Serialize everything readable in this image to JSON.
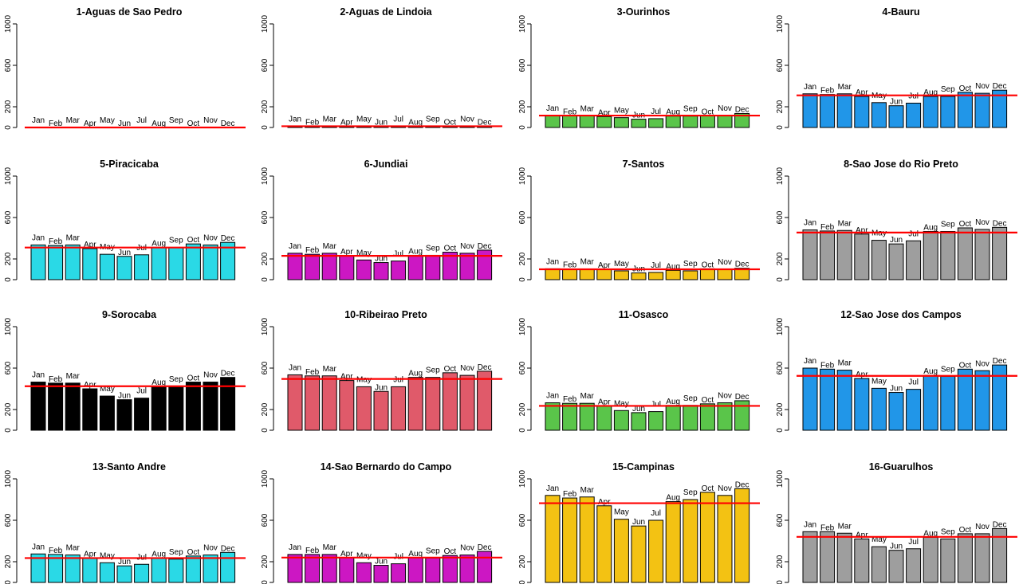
{
  "chart_data": [
    {
      "type": "bar",
      "title": "1-Aguas de Sao Pedro",
      "color": "#2196f3",
      "categories": [
        "Jan",
        "Feb",
        "Mar",
        "Apr",
        "May",
        "Jun",
        "Jul",
        "Aug",
        "Sep",
        "Oct",
        "Nov",
        "Dec"
      ],
      "values": [
        0,
        0,
        0,
        0,
        0,
        0,
        0,
        0,
        0,
        0,
        0,
        0
      ],
      "mean_line": 0,
      "yticks": [
        0,
        200,
        600,
        1000
      ],
      "ylim": [
        0,
        1000
      ]
    },
    {
      "type": "bar",
      "title": "2-Aguas de Lindoia",
      "color": "#2196f3",
      "categories": [
        "Jan",
        "Feb",
        "Mar",
        "Apr",
        "May",
        "Jun",
        "Jul",
        "Aug",
        "Sep",
        "Oct",
        "Nov",
        "Dec"
      ],
      "values": [
        12,
        12,
        12,
        12,
        12,
        12,
        12,
        12,
        12,
        12,
        12,
        12
      ],
      "mean_line": 12,
      "yticks": [
        0,
        200,
        600,
        1000
      ],
      "ylim": [
        0,
        1000
      ]
    },
    {
      "type": "bar",
      "title": "3-Ourinhos",
      "color": "#5ac54a",
      "categories": [
        "Jan",
        "Feb",
        "Mar",
        "Apr",
        "May",
        "Jun",
        "Jul",
        "Aug",
        "Sep",
        "Oct",
        "Nov",
        "Dec"
      ],
      "values": [
        115,
        113,
        113,
        105,
        95,
        80,
        85,
        110,
        110,
        112,
        115,
        135
      ],
      "mean_line": 115,
      "yticks": [
        0,
        200,
        600,
        1000
      ],
      "ylim": [
        0,
        1000
      ]
    },
    {
      "type": "bar",
      "title": "4-Bauru",
      "color": "#2196e8",
      "categories": [
        "Jan",
        "Feb",
        "Mar",
        "Apr",
        "May",
        "Jun",
        "Jul",
        "Aug",
        "Sep",
        "Oct",
        "Nov",
        "Dec"
      ],
      "values": [
        325,
        318,
        325,
        300,
        240,
        210,
        235,
        300,
        300,
        340,
        330,
        360
      ],
      "mean_line": 310,
      "yticks": [
        0,
        200,
        600,
        1000
      ],
      "ylim": [
        0,
        1000
      ]
    },
    {
      "type": "bar",
      "title": "5-Piracicaba",
      "color": "#2ad9e6",
      "categories": [
        "Jan",
        "Feb",
        "Mar",
        "Apr",
        "May",
        "Jun",
        "Jul",
        "Aug",
        "Sep",
        "Oct",
        "Nov",
        "Dec"
      ],
      "values": [
        335,
        330,
        335,
        300,
        245,
        225,
        240,
        310,
        310,
        345,
        335,
        360
      ],
      "mean_line": 310,
      "yticks": [
        0,
        200,
        600,
        1000
      ],
      "ylim": [
        0,
        1000
      ]
    },
    {
      "type": "bar",
      "title": "6-Jundiai",
      "color": "#cc17c3",
      "categories": [
        "Jan",
        "Feb",
        "Mar",
        "Apr",
        "May",
        "Jun",
        "Jul",
        "Aug",
        "Sep",
        "Oct",
        "Nov",
        "Dec"
      ],
      "values": [
        255,
        245,
        255,
        230,
        190,
        165,
        180,
        235,
        235,
        265,
        255,
        285
      ],
      "mean_line": 230,
      "yticks": [
        0,
        200,
        600,
        1000
      ],
      "ylim": [
        0,
        1000
      ]
    },
    {
      "type": "bar",
      "title": "7-Santos",
      "color": "#f3c213",
      "categories": [
        "Jan",
        "Feb",
        "Mar",
        "Apr",
        "May",
        "Jun",
        "Jul",
        "Aug",
        "Sep",
        "Oct",
        "Nov",
        "Dec"
      ],
      "values": [
        105,
        103,
        103,
        100,
        85,
        65,
        70,
        90,
        85,
        105,
        100,
        110
      ],
      "mean_line": 100,
      "yticks": [
        0,
        200,
        600,
        1000
      ],
      "ylim": [
        0,
        1000
      ]
    },
    {
      "type": "bar",
      "title": "8-Sao Jose do Rio Preto",
      "color": "#9e9e9e",
      "categories": [
        "Jan",
        "Feb",
        "Mar",
        "Apr",
        "May",
        "Jun",
        "Jul",
        "Aug",
        "Sep",
        "Oct",
        "Nov",
        "Dec"
      ],
      "values": [
        480,
        470,
        475,
        440,
        380,
        345,
        375,
        465,
        465,
        500,
        485,
        505
      ],
      "mean_line": 455,
      "yticks": [
        0,
        200,
        600,
        1000
      ],
      "ylim": [
        0,
        1000
      ]
    },
    {
      "type": "bar",
      "title": "9-Sorocaba",
      "color": "#000000",
      "categories": [
        "Jan",
        "Feb",
        "Mar",
        "Apr",
        "May",
        "Jun",
        "Jul",
        "Aug",
        "Sep",
        "Oct",
        "Nov",
        "Dec"
      ],
      "values": [
        465,
        455,
        455,
        400,
        330,
        295,
        310,
        425,
        425,
        465,
        465,
        510
      ],
      "mean_line": 425,
      "yticks": [
        0,
        200,
        600,
        1000
      ],
      "ylim": [
        0,
        1000
      ]
    },
    {
      "type": "bar",
      "title": "10-Ribeirao Preto",
      "color": "#e05a6a",
      "categories": [
        "Jan",
        "Feb",
        "Mar",
        "Apr",
        "May",
        "Jun",
        "Jul",
        "Aug",
        "Sep",
        "Oct",
        "Nov",
        "Dec"
      ],
      "values": [
        535,
        525,
        525,
        480,
        420,
        375,
        420,
        510,
        510,
        555,
        530,
        570
      ],
      "mean_line": 495,
      "yticks": [
        0,
        200,
        600,
        1000
      ],
      "ylim": [
        0,
        1000
      ]
    },
    {
      "type": "bar",
      "title": "11-Osasco",
      "color": "#5ac54a",
      "categories": [
        "Jan",
        "Feb",
        "Mar",
        "Apr",
        "May",
        "Jun",
        "Jul",
        "Aug",
        "Sep",
        "Oct",
        "Nov",
        "Dec"
      ],
      "values": [
        265,
        260,
        260,
        235,
        190,
        170,
        180,
        240,
        240,
        255,
        265,
        285
      ],
      "mean_line": 235,
      "yticks": [
        0,
        200,
        600,
        1000
      ],
      "ylim": [
        0,
        1000
      ]
    },
    {
      "type": "bar",
      "title": "12-Sao Jose dos Campos",
      "color": "#2196e8",
      "categories": [
        "Jan",
        "Feb",
        "Mar",
        "Apr",
        "May",
        "Jun",
        "Jul",
        "Aug",
        "Sep",
        "Oct",
        "Nov",
        "Dec"
      ],
      "values": [
        600,
        590,
        580,
        500,
        405,
        365,
        395,
        530,
        520,
        590,
        575,
        630
      ],
      "mean_line": 525,
      "yticks": [
        0,
        200,
        600,
        1000
      ],
      "ylim": [
        0,
        1000
      ]
    },
    {
      "type": "bar",
      "title": "13-Santo Andre",
      "color": "#2ad9e6",
      "categories": [
        "Jan",
        "Feb",
        "Mar",
        "Apr",
        "May",
        "Jun",
        "Jul",
        "Aug",
        "Sep",
        "Oct",
        "Nov",
        "Dec"
      ],
      "values": [
        275,
        270,
        265,
        235,
        190,
        160,
        175,
        235,
        225,
        255,
        265,
        290
      ],
      "mean_line": 235,
      "yticks": [
        0,
        200,
        600,
        1000
      ],
      "ylim": [
        0,
        1000
      ]
    },
    {
      "type": "bar",
      "title": "14-Sao Bernardo do Campo",
      "color": "#cc17c3",
      "categories": [
        "Jan",
        "Feb",
        "Mar",
        "Apr",
        "May",
        "Jun",
        "Jul",
        "Aug",
        "Sep",
        "Oct",
        "Nov",
        "Dec"
      ],
      "values": [
        270,
        270,
        270,
        240,
        190,
        165,
        180,
        240,
        235,
        260,
        265,
        300
      ],
      "mean_line": 240,
      "yticks": [
        0,
        200,
        600,
        1000
      ],
      "ylim": [
        0,
        1000
      ]
    },
    {
      "type": "bar",
      "title": "15-Campinas",
      "color": "#f3c213",
      "categories": [
        "Jan",
        "Feb",
        "Mar",
        "Apr",
        "May",
        "Jun",
        "Jul",
        "Aug",
        "Sep",
        "Oct",
        "Nov",
        "Dec"
      ],
      "values": [
        840,
        815,
        825,
        740,
        610,
        545,
        600,
        780,
        800,
        870,
        840,
        905
      ],
      "mean_line": 765,
      "yticks": [
        0,
        200,
        600,
        1000
      ],
      "ylim": [
        0,
        1000
      ]
    },
    {
      "type": "bar",
      "title": "16-Guarulhos",
      "color": "#9e9e9e",
      "categories": [
        "Jan",
        "Feb",
        "Mar",
        "Apr",
        "May",
        "Jun",
        "Jul",
        "Aug",
        "Sep",
        "Oct",
        "Nov",
        "Dec"
      ],
      "values": [
        490,
        490,
        475,
        420,
        345,
        310,
        325,
        435,
        420,
        470,
        470,
        520
      ],
      "mean_line": 440,
      "yticks": [
        0,
        200,
        600,
        1000
      ],
      "ylim": [
        0,
        1000
      ]
    }
  ]
}
